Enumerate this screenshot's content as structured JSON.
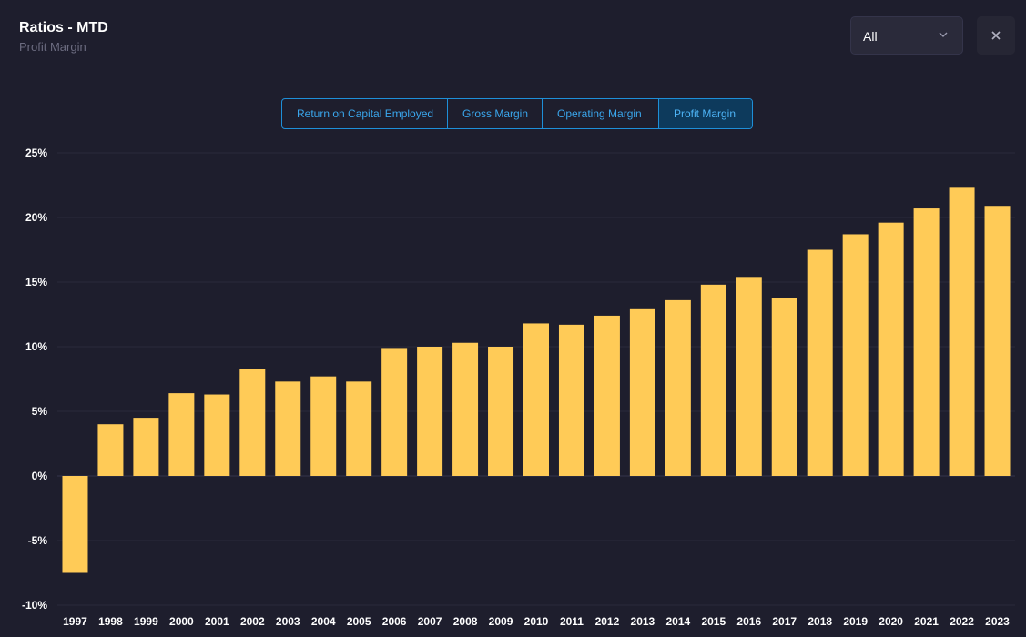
{
  "header": {
    "title": "Ratios - MTD",
    "subtitle": "Profit Margin"
  },
  "select": {
    "value": "All"
  },
  "tabs": [
    {
      "label": "Return on Capital Employed",
      "active": false
    },
    {
      "label": "Gross Margin",
      "active": false
    },
    {
      "label": "Operating Margin",
      "active": false
    },
    {
      "label": "Profit Margin",
      "active": true
    }
  ],
  "icons": {
    "select": "chevron-down-icon",
    "close": "close-icon"
  },
  "colors": {
    "bar": "#ffcb57",
    "background": "#1e1e2d",
    "accent": "#1e8fd8"
  },
  "chart_data": {
    "type": "bar",
    "categories": [
      "1997",
      "1998",
      "1999",
      "2000",
      "2001",
      "2002",
      "2003",
      "2004",
      "2005",
      "2006",
      "2007",
      "2008",
      "2009",
      "2010",
      "2011",
      "2012",
      "2013",
      "2014",
      "2015",
      "2016",
      "2017",
      "2018",
      "2019",
      "2020",
      "2021",
      "2022",
      "2023"
    ],
    "values": [
      -7.5,
      4.0,
      4.5,
      6.4,
      6.3,
      8.3,
      7.3,
      7.7,
      7.3,
      9.9,
      10.0,
      10.3,
      10.0,
      11.8,
      11.7,
      12.4,
      12.9,
      13.6,
      14.8,
      15.4,
      13.8,
      17.5,
      18.7,
      19.6,
      20.7,
      22.3,
      20.9
    ],
    "ylim": [
      -10,
      25
    ],
    "yticks": [
      "25%",
      "20%",
      "15%",
      "10%",
      "5%",
      "0%",
      "-5%",
      "-10%"
    ],
    "ytick_values": [
      25,
      20,
      15,
      10,
      5,
      0,
      -5,
      -10
    ],
    "grid": true,
    "legend": "none"
  }
}
